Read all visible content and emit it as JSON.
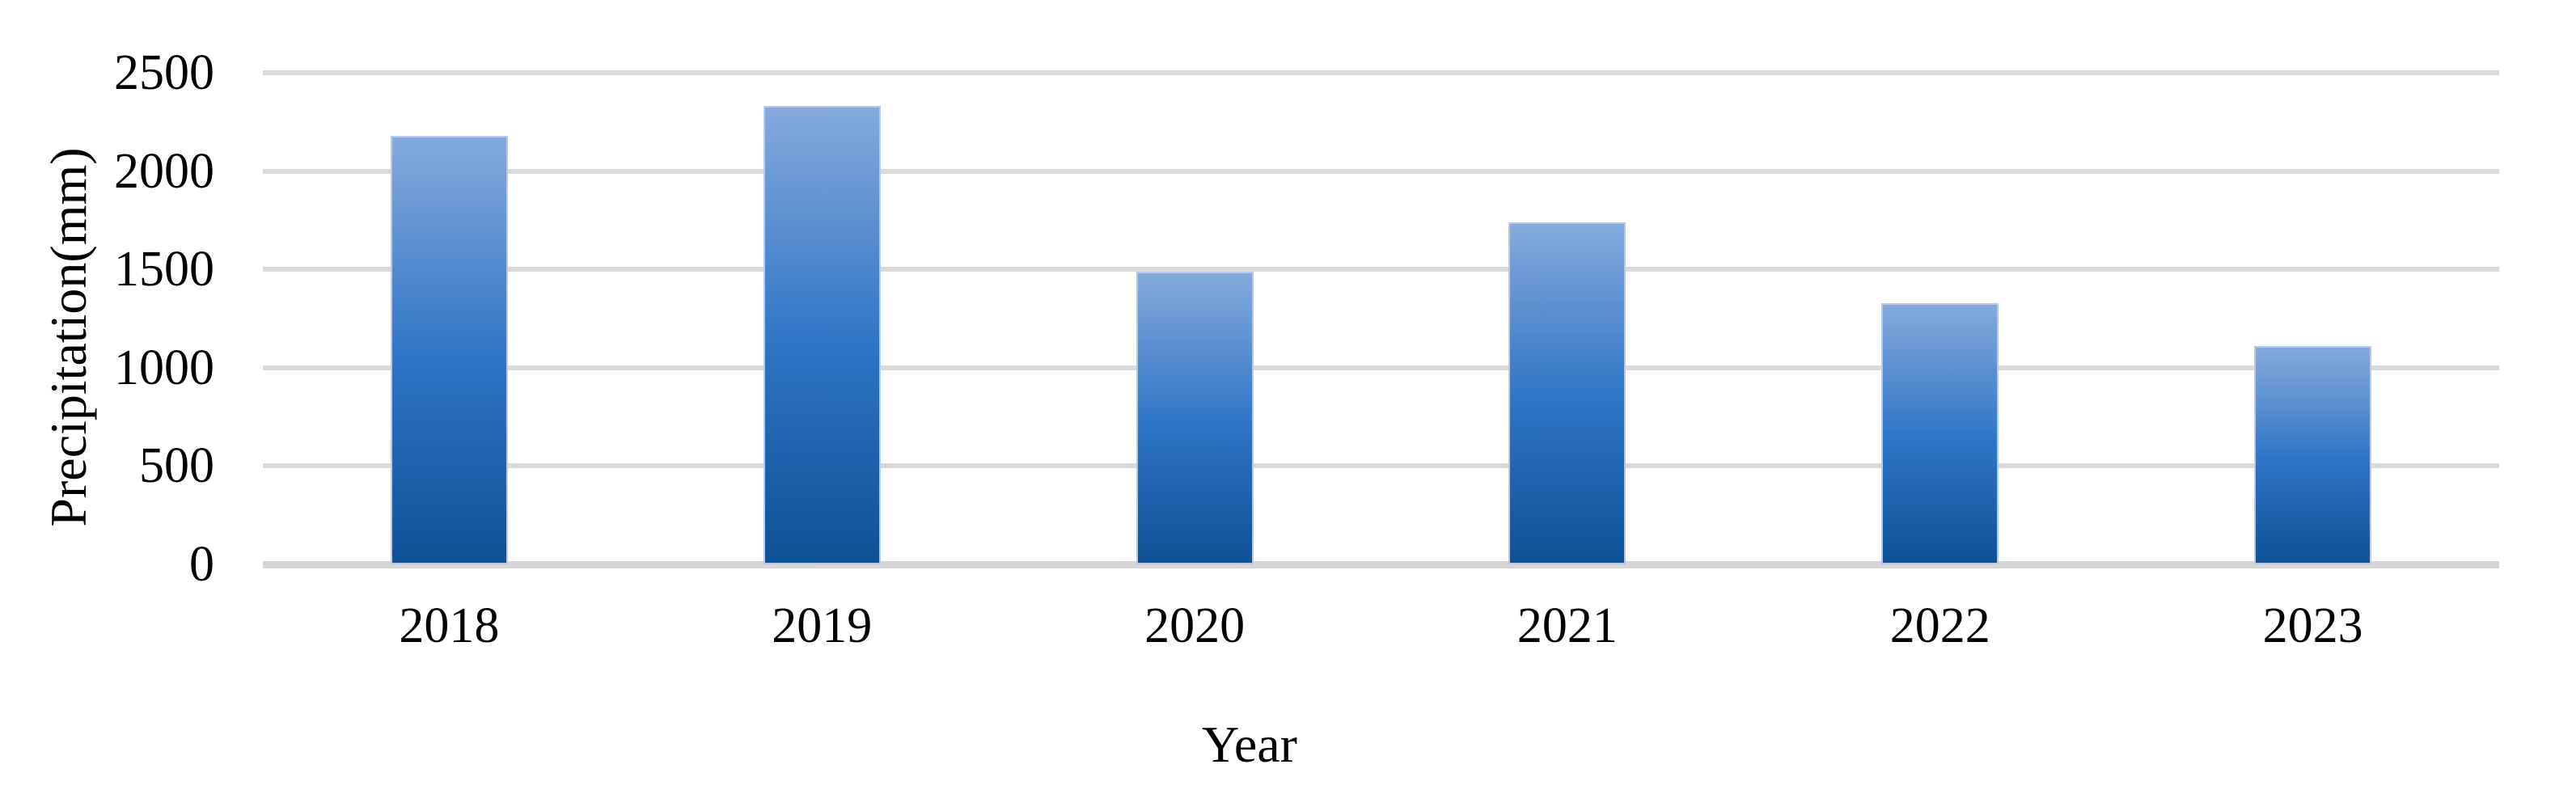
{
  "chart_data": {
    "type": "bar",
    "title": "",
    "xlabel": "Year",
    "ylabel": "Precipitation(mm)",
    "categories": [
      "2018",
      "2019",
      "2020",
      "2021",
      "2022",
      "2023"
    ],
    "values": [
      2180,
      2330,
      1490,
      1740,
      1330,
      1110
    ],
    "series_name": "Precipitation (mm)",
    "y_ticks": [
      0,
      500,
      1000,
      1500,
      2000,
      2500
    ],
    "ylim": [
      0,
      2500
    ],
    "grid": "horizontal-only",
    "legend": "none",
    "colors": {
      "bar_gradient_top": "#84aadd",
      "bar_gradient_mid": "#2e75c6",
      "bar_gradient_bottom": "#0e5196",
      "bar_border": "#b7c9ea",
      "gridline": "#d9d9d9",
      "axis_line": "#d6d6d6",
      "text": "#000000",
      "background": "#ffffff"
    }
  }
}
